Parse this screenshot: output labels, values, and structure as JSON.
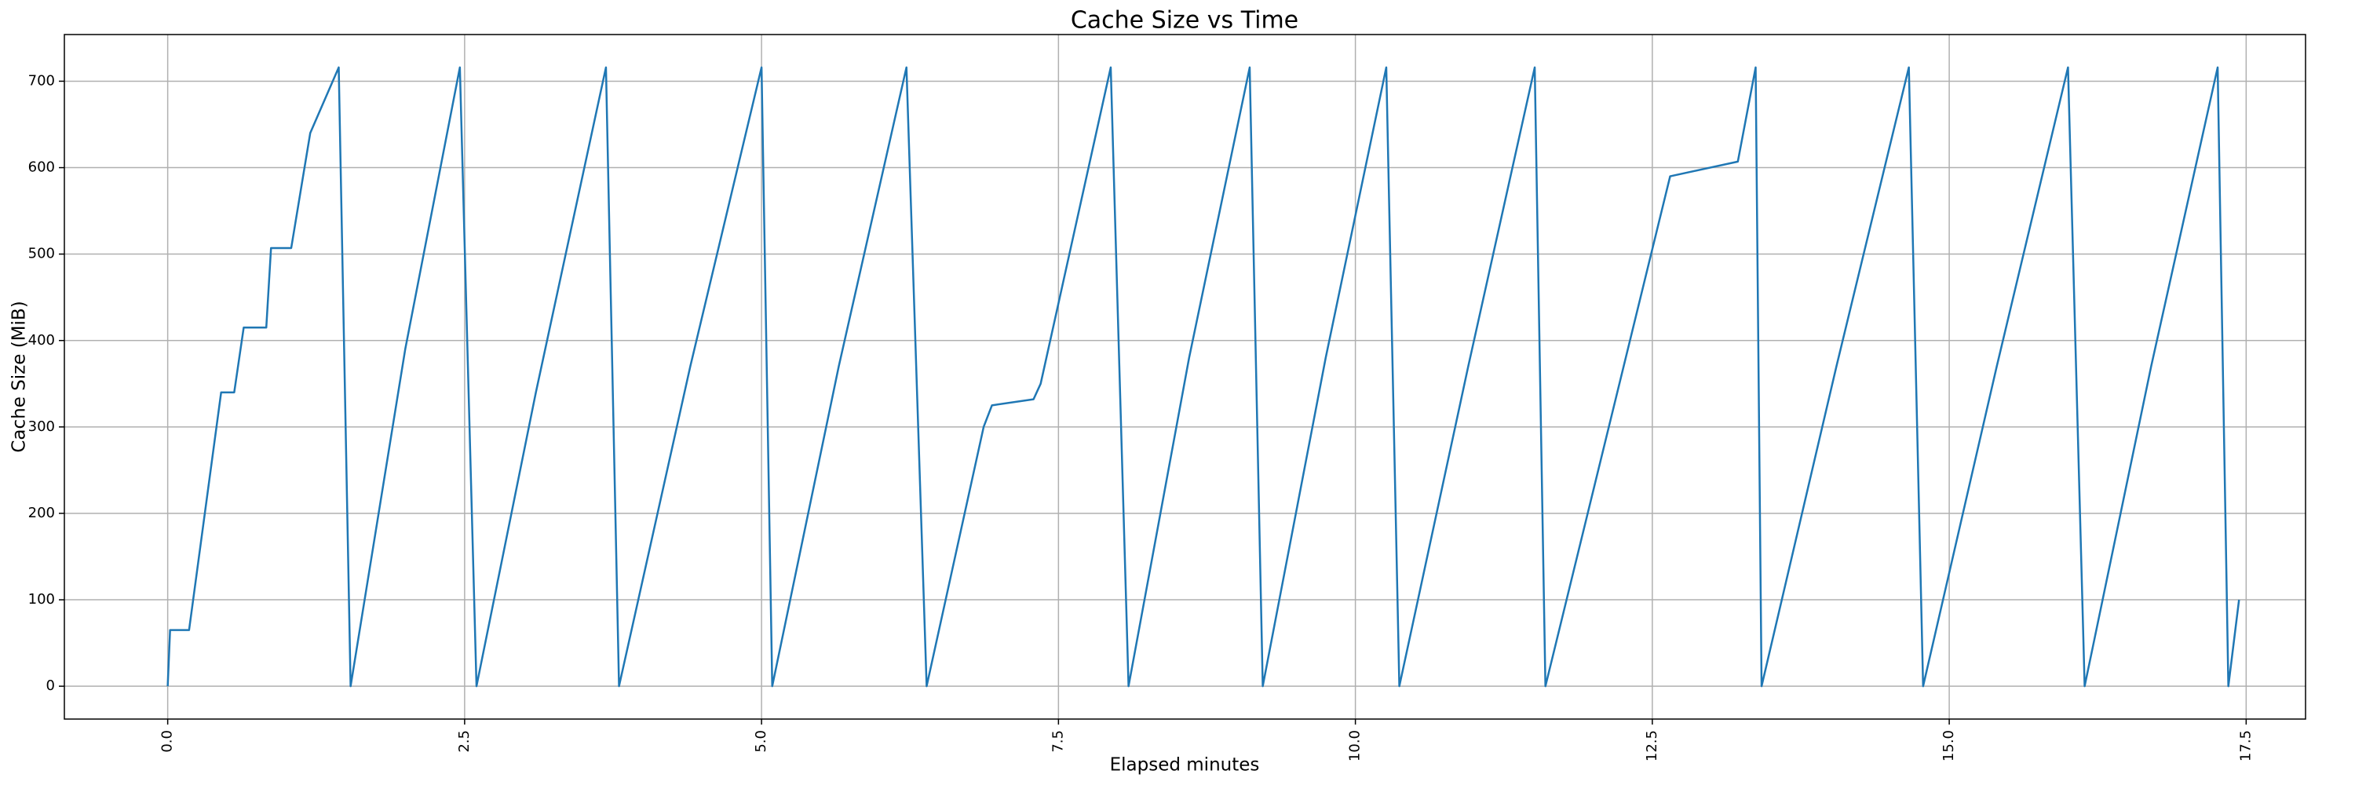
{
  "chart_data": {
    "type": "line",
    "title": "Cache Size vs Time",
    "xlabel": "Elapsed minutes",
    "ylabel": "Cache Size (MiB)",
    "color": "#1f77b4",
    "grid": true,
    "xlim": [
      -0.87,
      18.0
    ],
    "ylim": [
      -38,
      754
    ],
    "xticks": [
      {
        "value": 0,
        "label": "0.0"
      },
      2.5,
      {
        "value": 5,
        "label": "5.0"
      },
      7.5,
      {
        "value": 10,
        "label": "10.0"
      },
      12.5,
      {
        "value": 15,
        "label": "15.0"
      },
      17.5
    ],
    "yticks": [
      0,
      100,
      200,
      300,
      400,
      500,
      600,
      700
    ],
    "x": [
      0,
      0.02,
      0.18,
      0.45,
      0.56,
      0.64,
      0.83,
      0.87,
      1.04,
      1.2,
      1.44,
      1.54,
      2.0,
      2.46,
      2.6,
      3.1,
      3.69,
      3.8,
      4.4,
      5.0,
      5.09,
      5.65,
      6.22,
      6.39,
      6.87,
      6.94,
      7.29,
      7.35,
      7.94,
      8.09,
      8.6,
      9.11,
      9.22,
      9.75,
      10.26,
      10.37,
      10.95,
      11.51,
      11.6,
      12.65,
      13.22,
      13.37,
      13.42,
      14.05,
      14.66,
      14.78,
      15.4,
      16.0,
      16.14,
      16.7,
      17.26,
      17.35,
      17.44
    ],
    "values": [
      0,
      65,
      65,
      340,
      340,
      415,
      415,
      507,
      507,
      640,
      716,
      0,
      390,
      716,
      0,
      340,
      716,
      0,
      370,
      716,
      0,
      370,
      716,
      0,
      300,
      325,
      332,
      350,
      716,
      0,
      380,
      716,
      0,
      380,
      716,
      0,
      370,
      716,
      0,
      590,
      607,
      716,
      0,
      370,
      716,
      0,
      370,
      716,
      0,
      370,
      716,
      0,
      100
    ]
  }
}
